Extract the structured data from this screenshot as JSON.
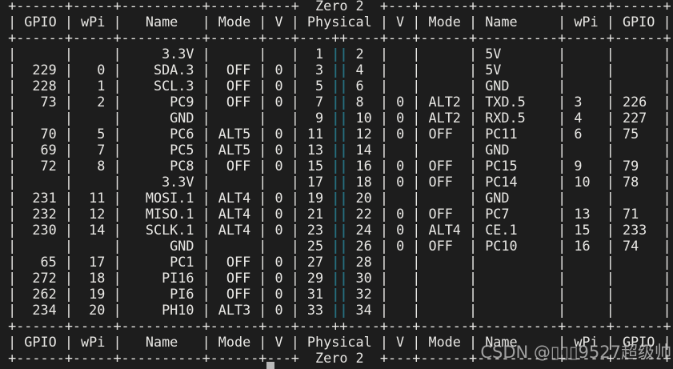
{
  "colors": {
    "background": "#1d1d1d",
    "foreground": "#e8e7e4",
    "pin_divider_teal": "#266e7e",
    "cursor": "#b9b9b9",
    "watermark": "#bfbfbf"
  },
  "watermark": {
    "text": "CSDN @▯▯▯9527超级帅"
  },
  "cursor": {
    "visible": true
  },
  "table": {
    "title": "Zero 2",
    "headers": [
      "GPIO",
      "wPi",
      "Name",
      "Mode",
      "V",
      "Physical",
      "V",
      "Mode",
      "Name",
      "wPi",
      "GPIO"
    ],
    "rows": [
      [
        "",
        "",
        "3.3V",
        "",
        "",
        "1",
        "2",
        "",
        "",
        "5V",
        "",
        ""
      ],
      [
        "229",
        "0",
        "SDA.3",
        "OFF",
        "0",
        "3",
        "4",
        "",
        "",
        "5V",
        "",
        ""
      ],
      [
        "228",
        "1",
        "SCL.3",
        "OFF",
        "0",
        "5",
        "6",
        "",
        "",
        "GND",
        "",
        ""
      ],
      [
        "73",
        "2",
        "PC9",
        "OFF",
        "0",
        "7",
        "8",
        "0",
        "ALT2",
        "TXD.5",
        "3",
        "226"
      ],
      [
        "",
        "",
        "GND",
        "",
        "",
        "9",
        "10",
        "0",
        "ALT2",
        "RXD.5",
        "4",
        "227"
      ],
      [
        "70",
        "5",
        "PC6",
        "ALT5",
        "0",
        "11",
        "12",
        "0",
        "OFF",
        "PC11",
        "6",
        "75"
      ],
      [
        "69",
        "7",
        "PC5",
        "ALT5",
        "0",
        "13",
        "14",
        "",
        "",
        "GND",
        "",
        ""
      ],
      [
        "72",
        "8",
        "PC8",
        "OFF",
        "0",
        "15",
        "16",
        "0",
        "OFF",
        "PC15",
        "9",
        "79"
      ],
      [
        "",
        "",
        "3.3V",
        "",
        "",
        "17",
        "18",
        "0",
        "OFF",
        "PC14",
        "10",
        "78"
      ],
      [
        "231",
        "11",
        "MOSI.1",
        "ALT4",
        "0",
        "19",
        "20",
        "",
        "",
        "GND",
        "",
        ""
      ],
      [
        "232",
        "12",
        "MISO.1",
        "ALT4",
        "0",
        "21",
        "22",
        "0",
        "OFF",
        "PC7",
        "13",
        "71"
      ],
      [
        "230",
        "14",
        "SCLK.1",
        "ALT4",
        "0",
        "23",
        "24",
        "0",
        "ALT4",
        "CE.1",
        "15",
        "233"
      ],
      [
        "",
        "",
        "GND",
        "",
        "",
        "25",
        "26",
        "0",
        "OFF",
        "PC10",
        "16",
        "74"
      ],
      [
        "65",
        "17",
        "PC1",
        "OFF",
        "0",
        "27",
        "28",
        "",
        "",
        "",
        "",
        ""
      ],
      [
        "272",
        "18",
        "PI16",
        "OFF",
        "0",
        "29",
        "30",
        "",
        "",
        "",
        "",
        ""
      ],
      [
        "262",
        "19",
        "PI6",
        "OFF",
        "0",
        "31",
        "32",
        "",
        "",
        "",
        "",
        ""
      ],
      [
        "234",
        "20",
        "PH10",
        "ALT3",
        "0",
        "33",
        "34",
        "",
        "",
        "",
        "",
        ""
      ]
    ]
  }
}
